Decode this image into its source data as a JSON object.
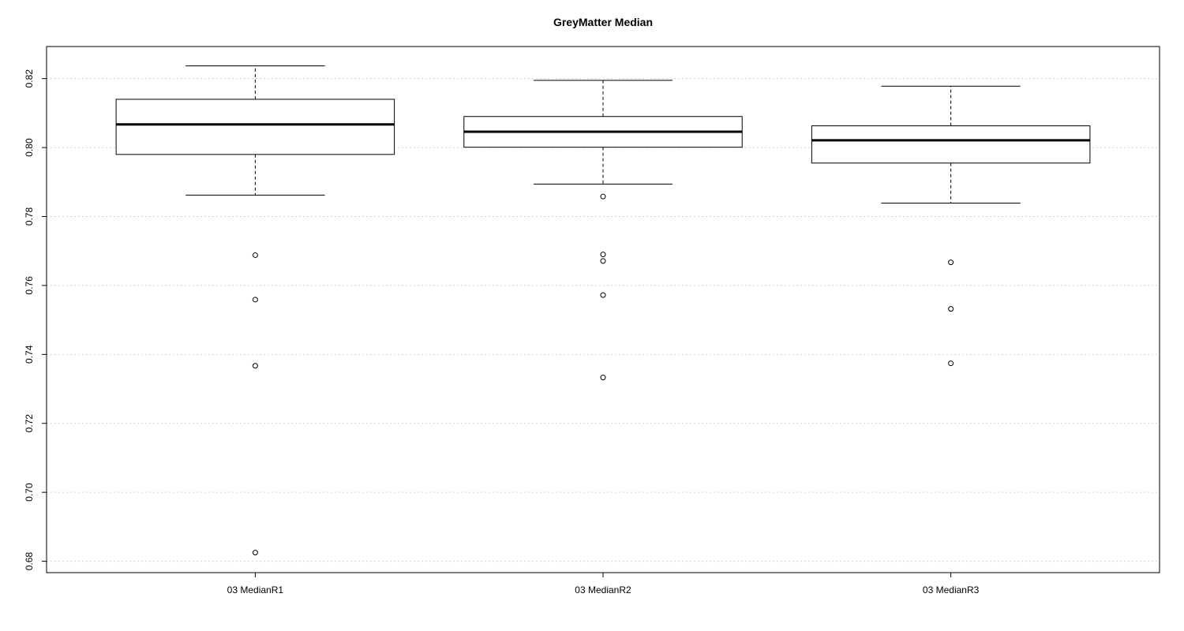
{
  "chart_data": {
    "type": "boxplot",
    "title": "GreyMatter Median",
    "xlabel": "",
    "ylabel": "",
    "ylim": [
      0.6767,
      0.8293
    ],
    "yticks": [
      0.68,
      0.7,
      0.72,
      0.74,
      0.76,
      0.78,
      0.8,
      0.82
    ],
    "ytick_labels": [
      "0.68",
      "0.70",
      "0.72",
      "0.74",
      "0.76",
      "0.78",
      "0.80",
      "0.82"
    ],
    "grid": "horizontal dotted",
    "categories": [
      "03 MedianR1",
      "03 MedianR2",
      "03 MedianR3"
    ],
    "boxes": [
      {
        "category": "03 MedianR1",
        "whisker_low": 0.7862,
        "q1": 0.798,
        "median": 0.8067,
        "q3": 0.814,
        "whisker_high": 0.8237,
        "outliers": [
          0.7688,
          0.7559,
          0.7367,
          0.6825
        ]
      },
      {
        "category": "03 MedianR2",
        "whisker_low": 0.7894,
        "q1": 0.8001,
        "median": 0.8046,
        "q3": 0.809,
        "whisker_high": 0.8195,
        "outliers": [
          0.7858,
          0.769,
          0.7671,
          0.7572,
          0.7333
        ]
      },
      {
        "category": "03 MedianR3",
        "whisker_low": 0.7839,
        "q1": 0.7955,
        "median": 0.8021,
        "q3": 0.8063,
        "whisker_high": 0.8178,
        "outliers": [
          0.7667,
          0.7532,
          0.7374
        ]
      }
    ]
  }
}
